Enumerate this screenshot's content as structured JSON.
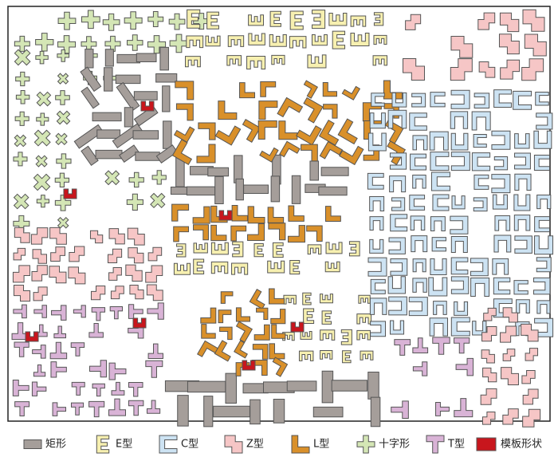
{
  "legend": [
    {
      "label": "矩形",
      "color": "#a59e9a"
    },
    {
      "label": "E型",
      "color": "#f7f0b0"
    },
    {
      "label": "C型",
      "color": "#cde3f3"
    },
    {
      "label": "Z型",
      "color": "#f6c6c6"
    },
    {
      "label": "L型",
      "color": "#d9902a"
    },
    {
      "label": "十字形",
      "color": "#d4e6b5"
    },
    {
      "label": "T型",
      "color": "#d9b3d6"
    },
    {
      "label": "模板形状",
      "color": "#c8161d"
    }
  ]
}
